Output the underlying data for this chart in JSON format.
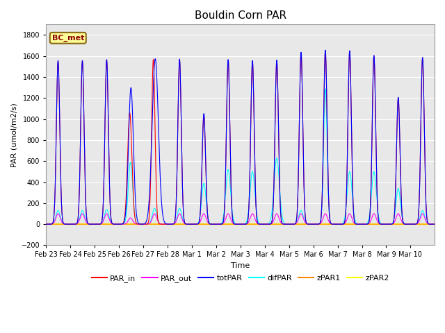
{
  "title": "Bouldin Corn PAR",
  "ylabel": "PAR (umol/m2/s)",
  "xlabel": "Time",
  "ylim": [
    -200,
    1900
  ],
  "yticks": [
    -200,
    0,
    200,
    400,
    600,
    800,
    1000,
    1200,
    1400,
    1600,
    1800
  ],
  "bg_color": "#d8d8d8",
  "plot_bg": "#e8e8e8",
  "legend_label": "BC_met",
  "series": {
    "PAR_in": {
      "color": "#ff0000",
      "lw": 0.8
    },
    "PAR_out": {
      "color": "#ff00ff",
      "lw": 0.8
    },
    "totPAR": {
      "color": "#0000ff",
      "lw": 0.8
    },
    "difPAR": {
      "color": "#00ffff",
      "lw": 0.8
    },
    "zPAR1": {
      "color": "#ff8800",
      "lw": 0.8
    },
    "zPAR2": {
      "color": "#ffff00",
      "lw": 1.5
    }
  },
  "tick_labels": [
    "Feb 23",
    "Feb 24",
    "Feb 25",
    "Feb 26",
    "Feb 27",
    "Feb 28",
    "Mar 1",
    "Mar 2",
    "Mar 3",
    "Mar 4",
    "Mar 5",
    "Mar 6",
    "Mar 7",
    "Mar 8",
    "Mar 9",
    "Mar 10"
  ],
  "n_days": 16,
  "ppd": 96,
  "par_in_peaks": [
    1550,
    1550,
    1560,
    1060,
    1570,
    1565,
    1040,
    1560,
    1550,
    1560,
    1630,
    1650,
    1650,
    1600,
    1200,
    1580
  ],
  "par_out_peaks": [
    100,
    100,
    100,
    60,
    100,
    100,
    100,
    100,
    100,
    100,
    100,
    100,
    100,
    100,
    100,
    100
  ],
  "tot_peaks": [
    1560,
    1560,
    1570,
    1300,
    1575,
    1575,
    1055,
    1570,
    1560,
    1565,
    1640,
    1660,
    1655,
    1610,
    1210,
    1590
  ],
  "dif_peaks": [
    130,
    130,
    140,
    590,
    150,
    150,
    390,
    520,
    500,
    630,
    130,
    1290,
    500,
    500,
    340,
    130
  ],
  "zpar1_peaks": [
    0,
    0,
    0,
    0,
    0,
    0,
    0,
    0,
    0,
    0,
    0,
    0,
    0,
    0,
    0,
    0
  ]
}
